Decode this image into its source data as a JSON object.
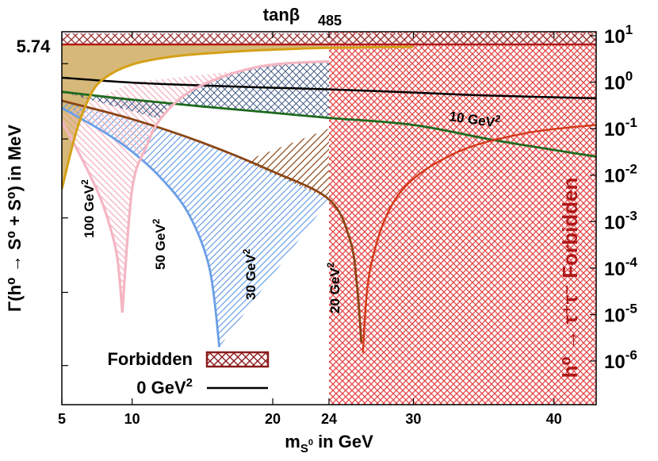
{
  "chart_data": {
    "type": "line",
    "title": "",
    "xlabel": "m",
    "xlabel_sub": "S",
    "xlabel_sub_sup": "0",
    "xlabel_suffix": " in GeV",
    "ylabel": "Γ(h⁰ → S⁰ + S⁰) in MeV",
    "y2label": "h⁰ → τ⁺τ⁻ Forbidden",
    "top_axis_label": "tanβ",
    "top_tick": "485",
    "left_marker": "5.74",
    "xlim": [
      5,
      43
    ],
    "x_ticks": [
      5,
      10,
      20,
      24,
      30,
      40
    ],
    "y2_ticks": [
      {
        "base": "10",
        "exp": "1",
        "value": 10
      },
      {
        "base": "10",
        "exp": "0",
        "value": 1
      },
      {
        "base": "10",
        "exp": "-1",
        "value": 0.1
      },
      {
        "base": "10",
        "exp": "-2",
        "value": 0.01
      },
      {
        "base": "10",
        "exp": "-3",
        "value": 0.001
      },
      {
        "base": "10",
        "exp": "-4",
        "value": 0.0001
      },
      {
        "base": "10",
        "exp": "-5",
        "value": 1e-05
      },
      {
        "base": "10",
        "exp": "-6",
        "value": 1e-06
      }
    ],
    "y2_log_scale": true,
    "forbidden_region_x": [
      24,
      43
    ],
    "series": [
      {
        "name": "0 GeV",
        "sup": "2",
        "color": "#000000",
        "points": [
          [
            5,
            1.25
          ],
          [
            10,
            0.98
          ],
          [
            15,
            0.85
          ],
          [
            20,
            0.76
          ],
          [
            24,
            0.7
          ],
          [
            30,
            0.6
          ],
          [
            35,
            0.52
          ],
          [
            43,
            0.45
          ]
        ]
      },
      {
        "name": "10 GeV",
        "sup": "2",
        "color": "#1e6a1e",
        "points": [
          [
            5,
            0.62
          ],
          [
            10,
            0.42
          ],
          [
            15,
            0.3
          ],
          [
            20,
            0.22
          ],
          [
            24,
            0.17
          ],
          [
            30,
            0.12
          ],
          [
            36,
            0.055
          ],
          [
            43,
            0.025
          ]
        ]
      },
      {
        "name": "20 GeV",
        "sup": "2",
        "color": "#8b4513",
        "points": [
          [
            5,
            0.4
          ],
          [
            10,
            0.16
          ],
          [
            15,
            0.05
          ],
          [
            20,
            0.012
          ],
          [
            24,
            0.003
          ],
          [
            25.5,
            0.0004
          ],
          [
            26,
            4e-05
          ],
          [
            26.3,
            2.5e-06
          ]
        ]
      },
      {
        "name": "30 GeV",
        "sup": "2",
        "color": "#6a9ee6",
        "points": [
          [
            5,
            0.28
          ],
          [
            8,
            0.085
          ],
          [
            10,
            0.032
          ],
          [
            12,
            0.009
          ],
          [
            14,
            0.0015
          ],
          [
            15.5,
            0.0001
          ],
          [
            16.2,
            2e-06
          ]
        ]
      },
      {
        "name": "50 GeV",
        "sup": "2",
        "color": "#f4b6c2",
        "points": [
          [
            5,
            0.14
          ],
          [
            6,
            0.04
          ],
          [
            7,
            0.01
          ],
          [
            8,
            0.002
          ],
          [
            8.9,
            0.0002
          ],
          [
            9.3,
            1.1e-05
          ]
        ]
      },
      {
        "name": "100 GeV",
        "sup": "2",
        "color": "#f4b6c2",
        "points": [
          [
            9.3,
            1.1e-05
          ],
          [
            10,
            0.005
          ],
          [
            11,
            0.04
          ],
          [
            12,
            0.16
          ],
          [
            14,
            0.6
          ],
          [
            17,
            1.5
          ],
          [
            20,
            2.4
          ],
          [
            24,
            2.8
          ]
        ]
      },
      {
        "name": "",
        "sup": "",
        "color": "#d4a017",
        "points": [
          [
            5,
            0.005
          ],
          [
            6,
            0.08
          ],
          [
            7,
            0.5
          ],
          [
            8,
            1.2
          ],
          [
            10,
            2.4
          ],
          [
            13,
            3.6
          ],
          [
            17,
            4.5
          ],
          [
            20,
            5.0
          ],
          [
            24,
            5.5
          ],
          [
            30,
            5.74
          ]
        ]
      },
      {
        "name": "",
        "sup": "",
        "color": "#d43a1a",
        "points": [
          [
            26.4,
            1.5e-06
          ],
          [
            27,
            0.00012
          ],
          [
            29,
            0.004
          ],
          [
            33,
            0.03
          ],
          [
            38,
            0.08
          ],
          [
            43,
            0.12
          ]
        ]
      }
    ],
    "legend": {
      "placement": "bottom-left",
      "forbidden_label": "Forbidden",
      "zero_label": "0 GeV",
      "zero_sup": "2"
    },
    "grid": false
  }
}
